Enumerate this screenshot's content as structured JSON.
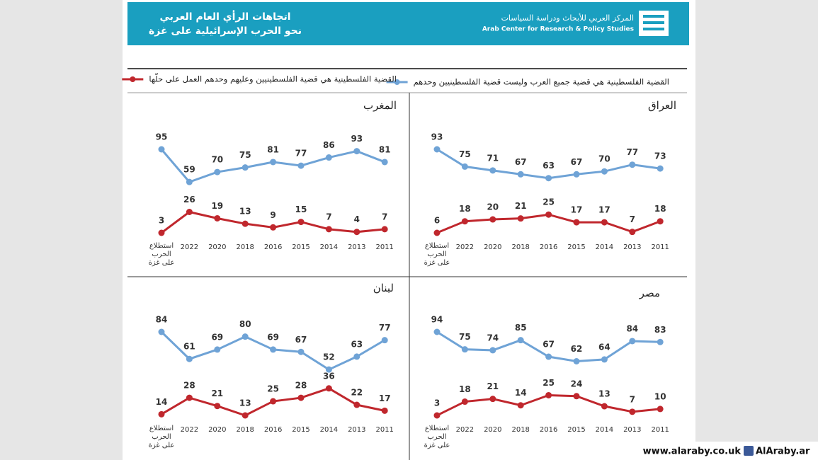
{
  "header": {
    "title": [
      "اتجاهات الرأي العام العربي",
      "نحو الحرب الإسرائيلية على غزة"
    ],
    "org_ar": "المركز العربي للأبحاث ودراسة السياسات",
    "org_en": "Arab Center for Research & Policy Studies"
  },
  "legend": [
    {
      "name": "القضية الفلسطينية هي قضية جميع العرب وليست قضية الفلسطينيين وحدهم",
      "color": "#6fa3d6"
    },
    {
      "name": "القضية الفلسطينية هي قضية الفلسطينيين وعليهم وحدهم العمل على حلّها",
      "color": "#c0272d"
    }
  ],
  "chart_data": [
    {
      "type": "line",
      "title": "المغرب",
      "categories": [
        "استطلاع الحرب على غزة",
        "2022",
        "2020",
        "2018",
        "2016",
        "2015",
        "2014",
        "2013",
        "2011"
      ],
      "series": [
        {
          "color": "#6fa3d6",
          "values": [
            95,
            59,
            70,
            75,
            81,
            77,
            86,
            93,
            81
          ]
        },
        {
          "color": "#c0272d",
          "values": [
            3,
            26,
            19,
            13,
            9,
            15,
            7,
            4,
            7
          ]
        }
      ]
    },
    {
      "type": "line",
      "title": "العراق",
      "categories": [
        "استطلاع الحرب على غزة",
        "2022",
        "2020",
        "2018",
        "2016",
        "2015",
        "2014",
        "2013",
        "2011"
      ],
      "series": [
        {
          "color": "#6fa3d6",
          "values": [
            93,
            75,
            71,
            67,
            63,
            67,
            70,
            77,
            73
          ]
        },
        {
          "color": "#c0272d",
          "values": [
            6,
            18,
            20,
            21,
            25,
            17,
            17,
            7,
            18
          ]
        }
      ]
    },
    {
      "type": "line",
      "title": "لبنان",
      "categories": [
        "استطلاع الحرب على غزة",
        "2022",
        "2020",
        "2018",
        "2016",
        "2015",
        "2014",
        "2013",
        "2011"
      ],
      "series": [
        {
          "color": "#6fa3d6",
          "values": [
            84,
            61,
            69,
            80,
            69,
            67,
            52,
            63,
            77
          ]
        },
        {
          "color": "#c0272d",
          "values": [
            14,
            28,
            21,
            13,
            25,
            28,
            36,
            22,
            17
          ]
        }
      ]
    },
    {
      "type": "line",
      "title": "مصر",
      "categories": [
        "استطلاع الحرب على غزة",
        "2022",
        "2020",
        "2018",
        "2016",
        "2015",
        "2014",
        "2013",
        "2011"
      ],
      "series": [
        {
          "color": "#6fa3d6",
          "values": [
            94,
            75,
            74,
            85,
            67,
            62,
            64,
            84,
            83
          ]
        },
        {
          "color": "#c0272d",
          "values": [
            3,
            18,
            21,
            14,
            25,
            24,
            13,
            7,
            10
          ]
        }
      ]
    }
  ],
  "footer": {
    "site": "www.alaraby.co.uk",
    "social": "AlAraby.ar"
  }
}
